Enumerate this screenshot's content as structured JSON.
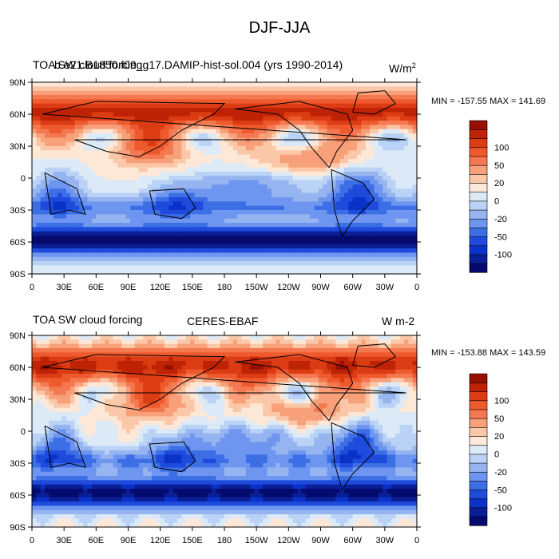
{
  "figure": {
    "title": "DJF-JJA"
  },
  "colors": {
    "levels": [
      "#050a6e",
      "#0a1e96",
      "#0a32c8",
      "#1e4bdc",
      "#3c6ee6",
      "#6e96f0",
      "#96b4f0",
      "#b9d2f5",
      "#dceaf8",
      "#fde8d8",
      "#fac8a8",
      "#f7a07a",
      "#f47850",
      "#ee5a2d",
      "#dc3c14",
      "#be2305",
      "#960f00"
    ],
    "land_outline": "#000000"
  },
  "chart_data": [
    {
      "type": "heatmap",
      "title_left": "TOA SW cloud forcing",
      "title_center": "b.e21.B1850.f09_g17.DAMIP-hist-sol.004 (yrs 1990-2014)",
      "title_right": "W/m",
      "title_right_sup": "2",
      "min_max_label": "MIN = -157.55 MAX = 141.69",
      "min": -157.55,
      "max": 141.69,
      "x_ticks": [
        "0",
        "30E",
        "60E",
        "90E",
        "120E",
        "150E",
        "180",
        "150W",
        "120W",
        "90W",
        "60W",
        "30W",
        "0"
      ],
      "y_ticks": [
        "90N",
        "60N",
        "30N",
        "0",
        "30S",
        "60S",
        "90S"
      ],
      "colorbar_labels": [
        "100",
        "50",
        "20",
        "0",
        "-20",
        "-50",
        "-100"
      ],
      "xlim": [
        0,
        360
      ],
      "ylim": [
        -90,
        90
      ]
    },
    {
      "type": "heatmap",
      "title_left": "TOA SW cloud forcing",
      "title_center": "CERES-EBAF",
      "title_right": "W m-2",
      "title_right_sup": "",
      "min_max_label": "MIN = -153.88 MAX = 143.59",
      "min": -153.88,
      "max": 143.59,
      "x_ticks": [
        "0",
        "30E",
        "60E",
        "90E",
        "120E",
        "150E",
        "180",
        "150W",
        "120W",
        "90W",
        "60W",
        "30W",
        "0"
      ],
      "y_ticks": [
        "90N",
        "60N",
        "30N",
        "0",
        "30S",
        "60S",
        "90S"
      ],
      "colorbar_labels": [
        "100",
        "50",
        "20",
        "0",
        "-20",
        "-50",
        "-100"
      ],
      "xlim": [
        0,
        360
      ],
      "ylim": [
        -90,
        90
      ]
    }
  ]
}
